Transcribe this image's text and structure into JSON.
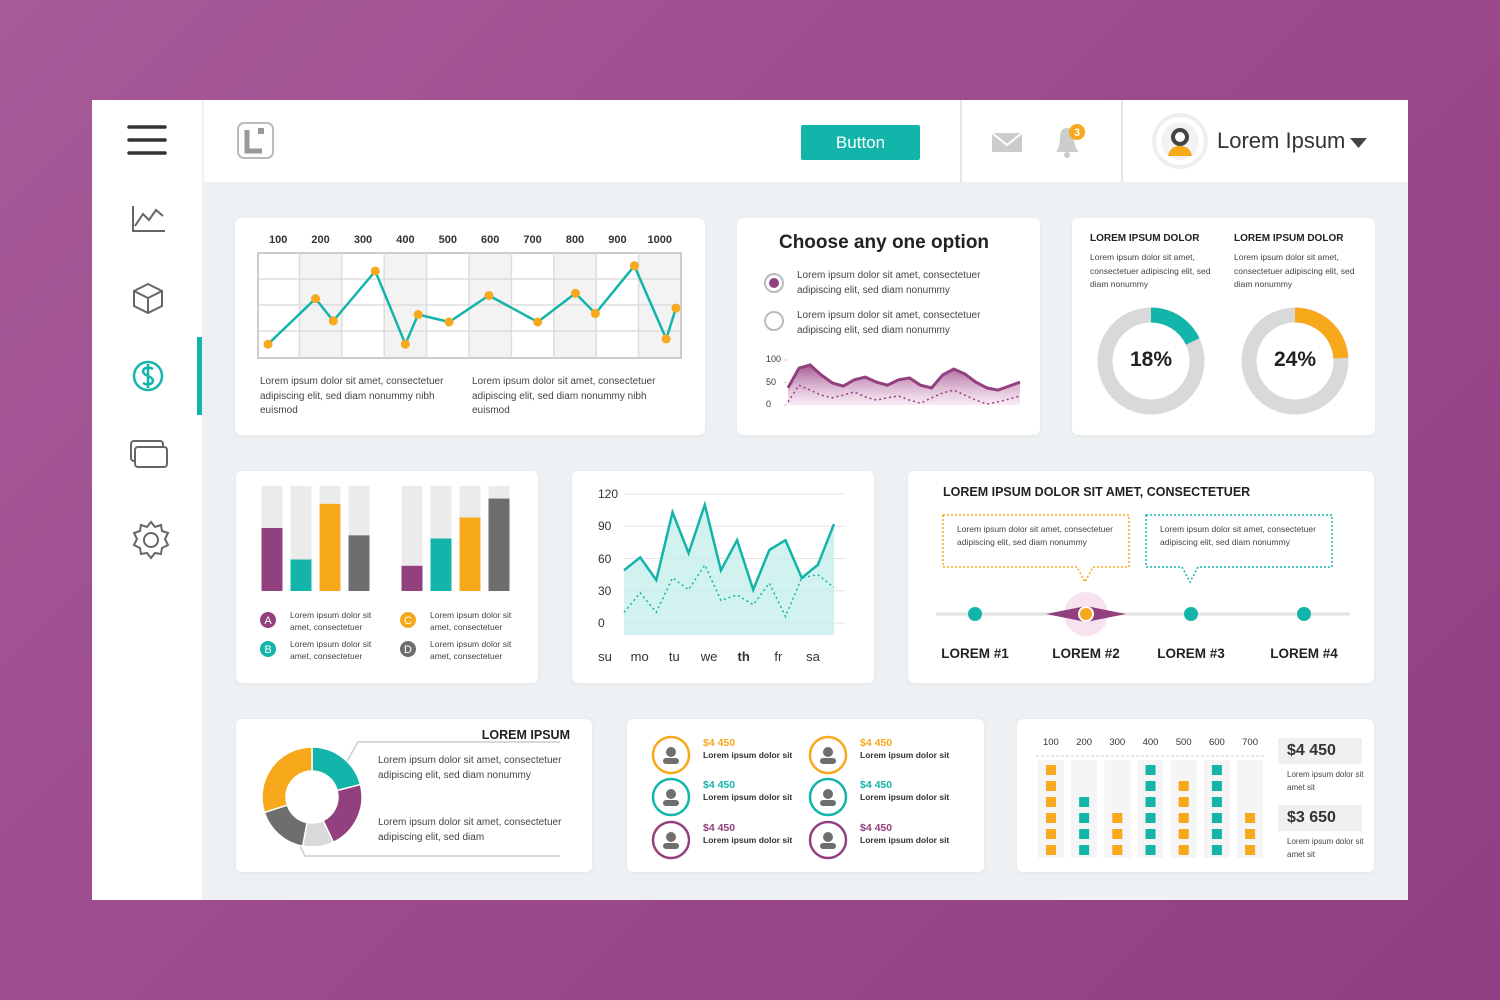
{
  "header": {
    "button": "Button",
    "badge": 3,
    "user": "Lorem Ipsum"
  },
  "line_chart": {
    "type": "line",
    "xticks": [
      100,
      200,
      300,
      400,
      500,
      600,
      700,
      800,
      900,
      1000
    ],
    "xlim": [
      50,
      1050
    ],
    "ylim": [
      0,
      100
    ],
    "color": "#13b5aa",
    "marker_color": "#f7a81b",
    "x": [
      76,
      188,
      230,
      329,
      400,
      430,
      503,
      597,
      712,
      801,
      848,
      940,
      1015,
      1038
    ],
    "values": [
      13,
      56,
      35,
      82,
      13,
      41,
      34,
      59,
      34,
      61,
      42,
      87,
      18,
      47
    ],
    "notes": [
      "Lorem ipsum dolor sit amet, consectetuer adipiscing elit, sed diam nonummy nibh euismod",
      "Lorem ipsum dolor sit amet, consectetuer adipiscing elit, sed diam nonummy nibh euismod"
    ]
  },
  "options_panel": {
    "title": "Choose any one option",
    "options": [
      "Lorem ipsum dolor sit amet, consectetuer adipiscing elit, sed diam nonummy",
      "Lorem ipsum dolor sit amet, consectetuer adipiscing elit, sed diam nonummy"
    ],
    "chart": {
      "type": "area",
      "ylim": [
        0,
        100
      ],
      "yticks": [
        0,
        50,
        100
      ],
      "series": [
        {
          "color": "#93407f",
          "values": [
            38,
            82,
            89,
            67,
            49,
            42,
            56,
            62,
            51,
            44,
            56,
            60,
            44,
            38,
            67,
            80,
            69,
            51,
            38,
            33,
            42,
            51
          ]
        },
        {
          "color": "#93407f",
          "values": [
            7,
            44,
            33,
            22,
            16,
            22,
            29,
            18,
            11,
            16,
            20,
            11,
            4,
            16,
            27,
            33,
            22,
            11,
            2,
            7,
            13,
            20
          ]
        }
      ]
    }
  },
  "donuts": {
    "type": "donut",
    "track_color": "#d9d9d9",
    "items": [
      {
        "heading": "LOREM IPSUM DOLOR",
        "text": "Lorem ipsum dolor sit amet, consectetuer adipiscing elit, sed diam nonummy",
        "value": 18,
        "value_label": "18%",
        "color": "#13b5aa"
      },
      {
        "heading": "LOREM IPSUM DOLOR",
        "text": "Lorem ipsum dolor sit amet, consectetuer adipiscing elit, sed diam nonummy",
        "value": 24,
        "value_label": "24%",
        "color": "#f7a81b"
      }
    ]
  },
  "bar_panel": {
    "type": "bar",
    "ylim": [
      0,
      100
    ],
    "series": [
      {
        "name": "A",
        "color": "#93407f",
        "text": "Lorem ipsum dolor sit amet, consectetuer",
        "values": [
          60,
          24
        ]
      },
      {
        "name": "B",
        "color": "#13b5aa",
        "text": "Lorem ipsum dolor sit amet, consectetuer",
        "values": [
          30,
          50
        ]
      },
      {
        "name": "C",
        "color": "#f7a81b",
        "text": "Lorem ipsum dolor sit amet, consectetuer",
        "values": [
          83,
          70
        ]
      },
      {
        "name": "D",
        "color": "#6e6e6e",
        "text": "Lorem ipsum dolor sit amet, consectetuer",
        "values": [
          53,
          88
        ]
      }
    ]
  },
  "week_chart": {
    "type": "line",
    "ylim": [
      0,
      120
    ],
    "yticks": [
      0,
      30,
      60,
      90,
      120
    ],
    "categories": [
      "su",
      "mo",
      "tu",
      "we",
      "th",
      "fr",
      "sa"
    ],
    "series": [
      {
        "color": "#13b5aa",
        "values": [
          49,
          61,
          40,
          103,
          65,
          110,
          49,
          77,
          31,
          68,
          77,
          42,
          54,
          92
        ]
      },
      {
        "color": "#13b5aa",
        "values": [
          10,
          28,
          10,
          42,
          31,
          54,
          21,
          26,
          17,
          37,
          6,
          42,
          45,
          33
        ]
      }
    ]
  },
  "steps_panel": {
    "title": "LOREM IPSUM DOLOR SIT AMET, CONSECTETUER",
    "callouts": [
      {
        "text": "Lorem ipsum dolor sit amet, consectetuer adipiscing elit, sed diam nonummy",
        "color": "#f7a81b"
      },
      {
        "text": "Lorem ipsum dolor sit amet, consectetuer adipiscing elit, sed diam nonummy",
        "color": "#13b5aa"
      }
    ],
    "steps": [
      "LOREM #1",
      "LOREM #2",
      "LOREM #3",
      "LOREM #4"
    ]
  },
  "pie_panel": {
    "type": "pie",
    "title": "LOREM IPSUM",
    "values": [
      21,
      22,
      10,
      17,
      30
    ],
    "colors": [
      "#13b5aa",
      "#93407f",
      "#d9d9d9",
      "#6e6e6e",
      "#f7a81b"
    ],
    "texts": [
      "Lorem ipsum dolor sit amet, consectetuer adipiscing elit, sed diam nonummy",
      "Lorem ipsum dolor sit amet, consectetuer adipiscing elit, sed diam"
    ]
  },
  "stats_panel": {
    "items": [
      {
        "value": "$4 450",
        "text": "Lorem ipsum dolor sit",
        "color": "#f7a81b"
      },
      {
        "value": "$4 450",
        "text": "Lorem ipsum dolor sit",
        "color": "#f7a81b"
      },
      {
        "value": "$4 450",
        "text": "Lorem ipsum dolor sit",
        "color": "#13b5aa"
      },
      {
        "value": "$4 450",
        "text": "Lorem ipsum dolor sit",
        "color": "#13b5aa"
      },
      {
        "value": "$4 450",
        "text": "Lorem ipsum dolor sit",
        "color": "#93407f"
      },
      {
        "value": "$4 450",
        "text": "Lorem ipsum dolor sit",
        "color": "#93407f"
      }
    ]
  },
  "squares_chart": {
    "type": "bar",
    "xticks": [
      100,
      200,
      300,
      400,
      500,
      600,
      700
    ],
    "xlim": [
      55,
      745
    ],
    "x": [
      100,
      200,
      300,
      400,
      500,
      600,
      700
    ],
    "values": [
      6,
      4,
      3,
      6,
      5,
      6,
      3
    ],
    "colors": [
      "#f7a81b",
      "#13b5aa",
      "#f7a81b",
      "#13b5aa",
      "#f7a81b",
      "#13b5aa",
      "#f7a81b"
    ],
    "totals": [
      {
        "value": "$4 450",
        "text": "Lorem ipsum dolor sit amet sit"
      },
      {
        "value": "$3 650",
        "text": "Lorem ipsum dolor sit amet sit"
      }
    ]
  }
}
